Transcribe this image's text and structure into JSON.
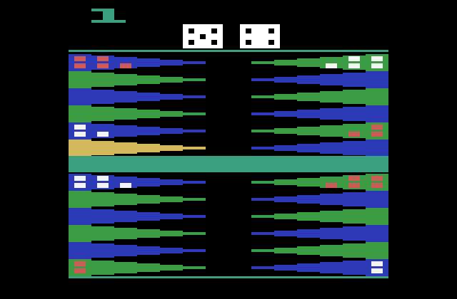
{
  "game": {
    "id_digit": "1"
  },
  "dice": [
    {
      "value": 5
    },
    {
      "value": 4
    }
  ],
  "colors": {
    "background": "#000000",
    "frame_teal": "#3aa080",
    "point_green": "#3c9c44",
    "point_blue": "#2c3ab8",
    "point_gold": "#d4b85c",
    "checker_red": "#d05a58",
    "checker_white": "#f4f4f4",
    "die_face": "#ffffff",
    "die_pip": "#000000"
  },
  "board": {
    "left_point_colors_top": [
      "blue",
      "green",
      "blue",
      "green",
      "blue",
      "gold"
    ],
    "right_point_colors_top": [
      "green",
      "blue",
      "green",
      "blue",
      "green",
      "blue"
    ],
    "left_point_colors_bottom": [
      "blue",
      "green",
      "blue",
      "green",
      "blue",
      "green"
    ],
    "right_point_colors_bottom": [
      "green",
      "blue",
      "green",
      "blue",
      "green",
      "blue"
    ],
    "checkers": {
      "left_top": [
        {
          "row": 0,
          "color": "red",
          "count": 5
        },
        {
          "row": 4,
          "color": "white",
          "count": 3
        }
      ],
      "right_top": [
        {
          "row": 0,
          "color": "white",
          "count": 5
        },
        {
          "row": 4,
          "color": "red",
          "count": 3
        }
      ],
      "left_bottom": [
        {
          "row": 0,
          "color": "white",
          "count": 5
        },
        {
          "row": 5,
          "color": "red",
          "count": 2
        }
      ],
      "right_bottom": [
        {
          "row": 0,
          "color": "red",
          "count": 5
        },
        {
          "row": 5,
          "color": "white",
          "count": 2
        }
      ]
    }
  }
}
